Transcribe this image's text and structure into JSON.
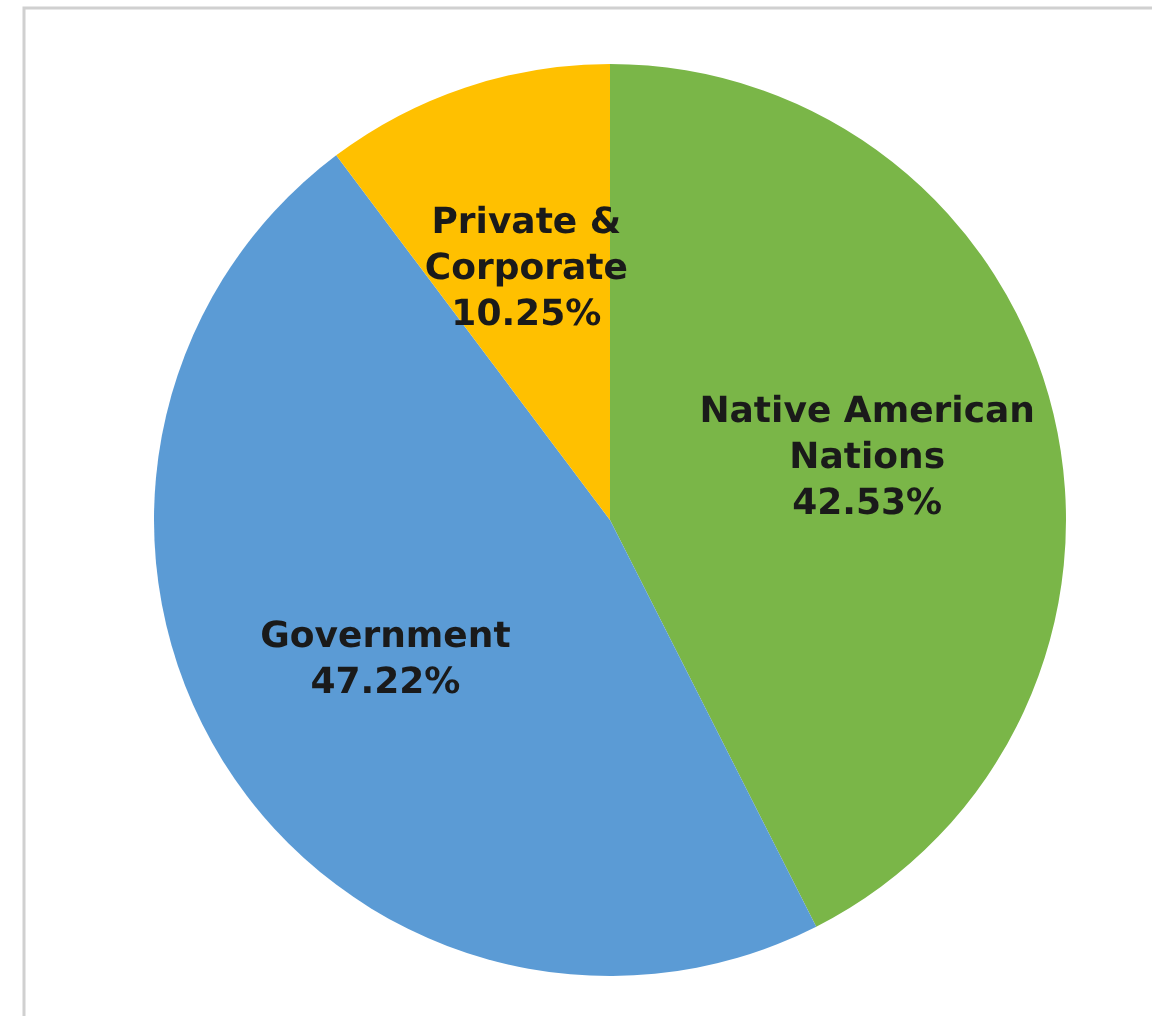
{
  "chart_data": {
    "type": "pie",
    "categories": [
      "Native American Nations",
      "Government",
      "Private & Corporate"
    ],
    "values": [
      42.53,
      47.22,
      10.25
    ],
    "colors": [
      "#7ab648",
      "#5b9bd5",
      "#ffc000"
    ],
    "value_labels": [
      "42.53%",
      "47.22%",
      "10.25%"
    ]
  }
}
